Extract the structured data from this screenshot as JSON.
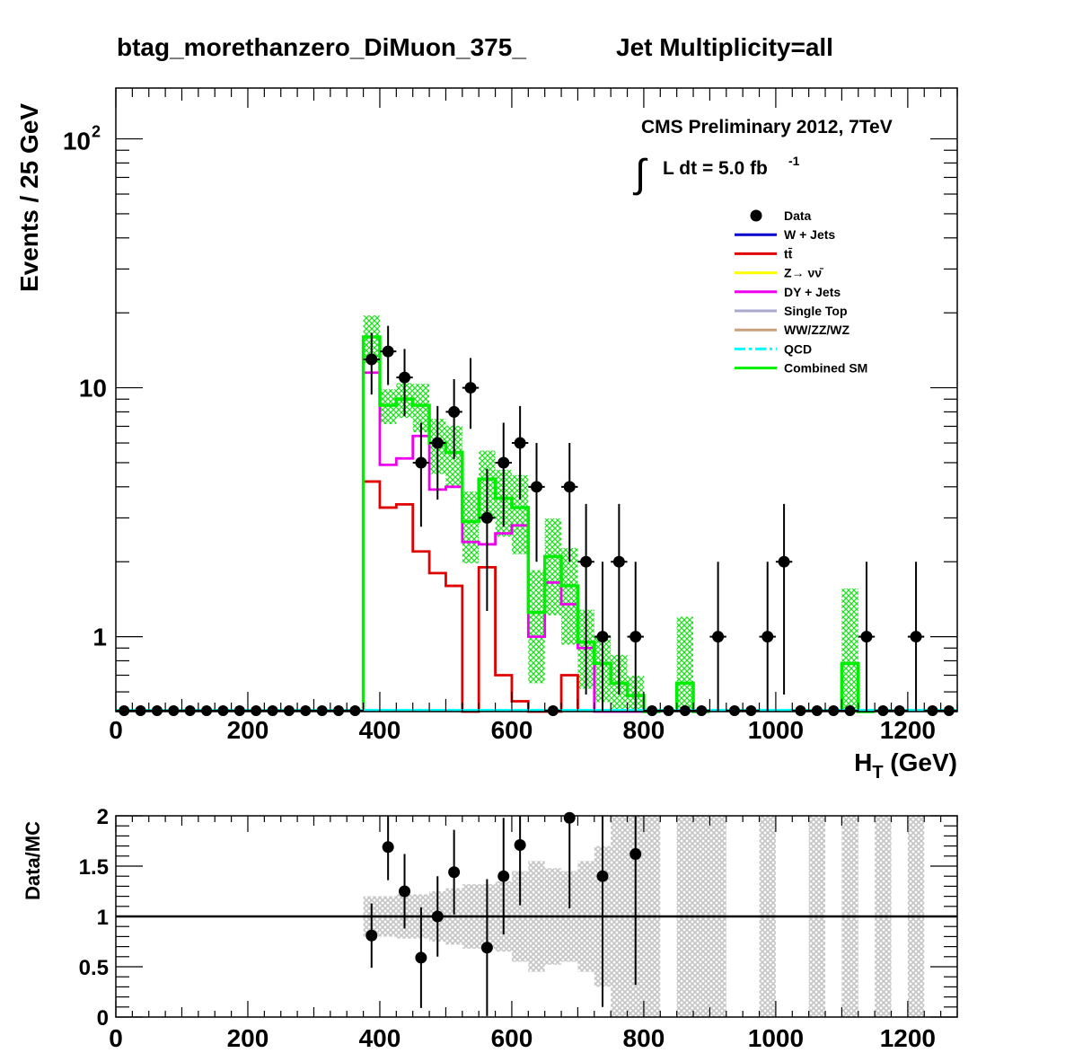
{
  "title_left": "btag_morethanzero_DiMuon_375_",
  "title_right": "Jet Multiplicity=all",
  "cms_label": "CMS Preliminary 2012, 7TeV",
  "lumi_label": "L dt = 5.0 fb",
  "lumi_exponent": "-1",
  "integral_symbol": "∫",
  "legend": [
    {
      "label": "Data",
      "color": "#000000",
      "kind": "marker"
    },
    {
      "label": "W + Jets",
      "color": "#0000cc",
      "kind": "line"
    },
    {
      "label": "tt̄",
      "color": "#e00000",
      "kind": "line"
    },
    {
      "label": "Z→ νν̄",
      "color": "#ffff00",
      "kind": "line"
    },
    {
      "label": "DY + Jets",
      "color": "#ee00ee",
      "kind": "line"
    },
    {
      "label": "Single Top",
      "color": "#aaaacc",
      "kind": "line"
    },
    {
      "label": "WW/ZZ/WZ",
      "color": "#c8a07a",
      "kind": "line"
    },
    {
      "label": "QCD",
      "color": "#00ffff",
      "kind": "dash"
    },
    {
      "label": "Combined SM",
      "color": "#00ee00",
      "kind": "line"
    }
  ],
  "chart_data": [
    {
      "type": "line",
      "title": "btag_morethanzero_DiMuon_375_ Jet Multiplicity=all",
      "xlabel": "H_T (GeV)",
      "ylabel": "Events / 25 GeV",
      "xlim": [
        0,
        1275
      ],
      "ylim": [
        0.5,
        160
      ],
      "yscale": "log",
      "x_ticks": [
        "0",
        "200",
        "400",
        "600",
        "800",
        "1000",
        "1200"
      ],
      "y_ticks": [
        "1",
        "10",
        "10^2"
      ],
      "bin_width": 25,
      "data_points": {
        "x": [
          387.5,
          412.5,
          437.5,
          462.5,
          487.5,
          512.5,
          537.5,
          562.5,
          587.5,
          612.5,
          637.5,
          687.5,
          712.5,
          737.5,
          762.5,
          787.5,
          912.5,
          987.5,
          1012.5,
          1137.5,
          1212.5
        ],
        "y": [
          13,
          14,
          11,
          5,
          6,
          8,
          10,
          3,
          5,
          6,
          4,
          4,
          2,
          1,
          2,
          1,
          1,
          1,
          2,
          1,
          1
        ]
      },
      "zero_points_x": [
        12.5,
        37.5,
        62.5,
        87.5,
        112.5,
        137.5,
        162.5,
        187.5,
        212.5,
        237.5,
        262.5,
        287.5,
        312.5,
        337.5,
        362.5,
        662.5,
        812.5,
        837.5,
        862.5,
        887.5,
        937.5,
        962.5,
        1037.5,
        1062.5,
        1087.5,
        1112.5,
        1162.5,
        1187.5,
        1237.5,
        1262.5
      ],
      "series": [
        {
          "name": "Combined SM",
          "color": "#00ee00",
          "bin_edges": [
            375,
            400,
            425,
            450,
            475,
            500,
            525,
            550,
            575,
            600,
            625,
            650,
            675,
            700,
            725,
            750,
            775,
            800,
            850,
            875,
            1100,
            1125
          ],
          "values": [
            16,
            8.5,
            9,
            8.5,
            6,
            5.5,
            2.9,
            4.3,
            3.6,
            3.3,
            1.25,
            2.1,
            1.6,
            0.95,
            0.78,
            0.65,
            0.58,
            0.5,
            0.65,
            0.5,
            0.78,
            0.5
          ],
          "uncertainty": [
            0.22,
            0.16,
            0.16,
            0.22,
            0.25,
            0.28,
            0.32,
            0.3,
            0.3,
            0.35,
            0.48,
            0.42,
            0.42,
            0.35,
            0.3,
            0.3,
            0.2,
            0,
            0.85,
            0,
            1.0,
            0
          ]
        },
        {
          "name": "DY + Jets",
          "color": "#ee00ee",
          "bin_edges": [
            375,
            400,
            425,
            450,
            475,
            500,
            525,
            550,
            575,
            600,
            625,
            650,
            675,
            700,
            725,
            750,
            775
          ],
          "values": [
            11.5,
            4.9,
            5.2,
            6.4,
            3.9,
            4.0,
            2.4,
            2.35,
            2.6,
            2.8,
            1.0,
            1.65,
            1.35,
            0.9,
            0.5,
            0.5,
            0.5
          ]
        },
        {
          "name": "tt̄",
          "color": "#e00000",
          "bin_edges": [
            375,
            400,
            425,
            450,
            475,
            500,
            525,
            550,
            575,
            600,
            625,
            650,
            675
          ],
          "values": [
            4.2,
            3.3,
            3.4,
            2.2,
            1.8,
            1.6,
            0.45,
            1.9,
            0.7,
            0.55,
            0.45,
            0.4,
            0.7
          ]
        }
      ]
    },
    {
      "type": "scatter",
      "ylabel": "Data/MC",
      "xlim": [
        0,
        1275
      ],
      "ylim": [
        0,
        2
      ],
      "x_ticks": [
        "0",
        "200",
        "400",
        "600",
        "800",
        "1000",
        "1200"
      ],
      "y_ticks": [
        "0",
        "0.5",
        "1",
        "1.5",
        "2"
      ],
      "reference_line": 1,
      "points": {
        "x": [
          387.5,
          412.5,
          437.5,
          462.5,
          487.5,
          512.5,
          562.5,
          587.5,
          612.5,
          687.5,
          737.5,
          787.5
        ],
        "y": [
          0.81,
          1.69,
          1.25,
          0.59,
          1.0,
          1.44,
          0.69,
          1.4,
          1.71,
          1.98,
          1.4,
          1.62
        ],
        "err": [
          0.32,
          0.33,
          0.37,
          0.5,
          0.4,
          0.42,
          0.68,
          0.58,
          0.6,
          0.9,
          1.3,
          1.3
        ]
      },
      "uncertainty_band": {
        "bin_edges": [
          375,
          400,
          425,
          450,
          475,
          500,
          525,
          550,
          575,
          600,
          625,
          650,
          675,
          700,
          725,
          750,
          775,
          800,
          850,
          875,
          900,
          925,
          975,
          1000,
          1050,
          1075,
          1100,
          1125,
          1150,
          1175,
          1200,
          1225
        ],
        "half_width": [
          0.2,
          0.2,
          0.22,
          0.22,
          0.25,
          0.28,
          0.32,
          0.32,
          0.35,
          0.45,
          0.55,
          0.48,
          0.45,
          0.55,
          0.7,
          1.0,
          1.0,
          1.0,
          1.0,
          1.0,
          1.0,
          0,
          1.0,
          0,
          1.0,
          0,
          1.0,
          0,
          1.0,
          0,
          1.0,
          0
        ]
      }
    }
  ]
}
